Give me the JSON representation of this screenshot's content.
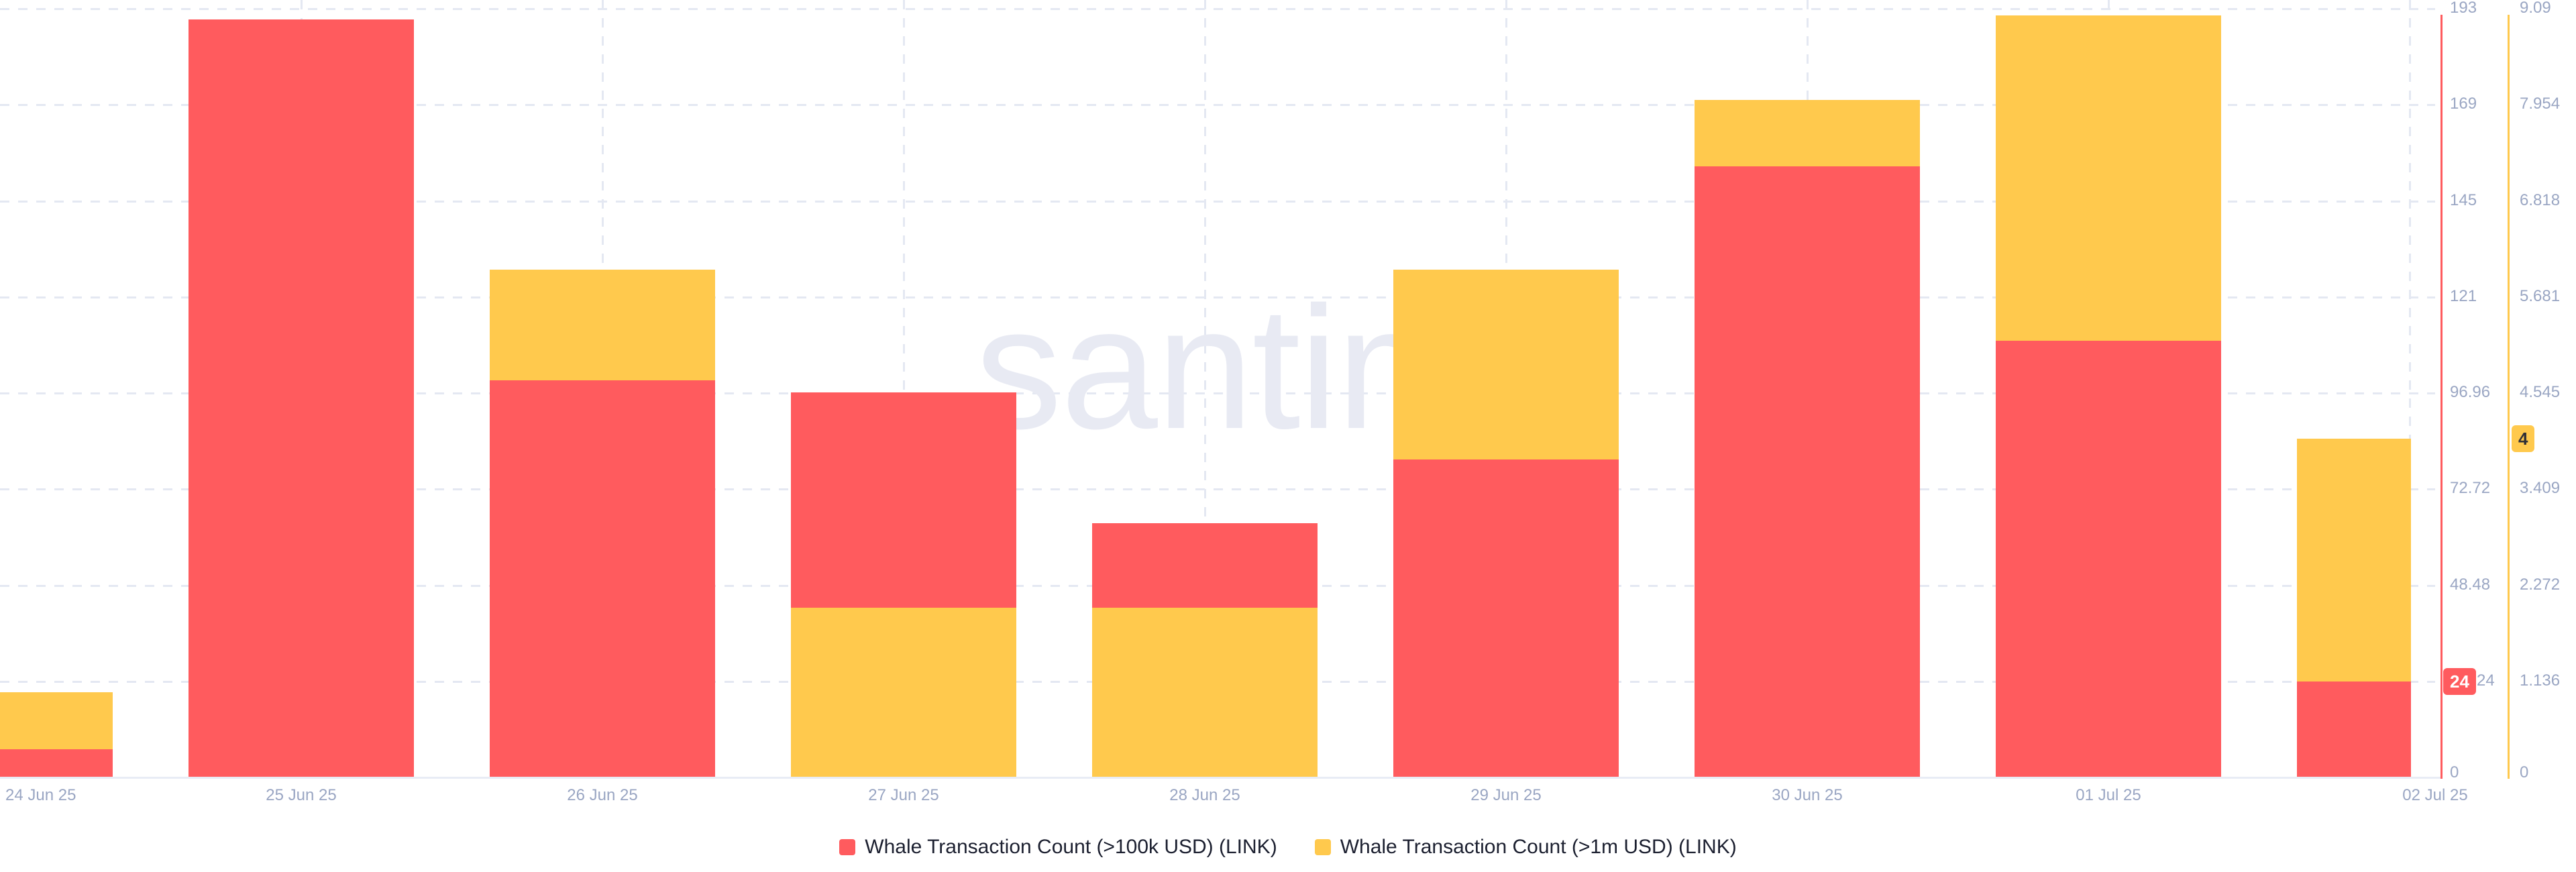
{
  "watermark": ".santiment",
  "colors": {
    "red": "#ff5b5e",
    "yellow": "#ffc94d",
    "grid": "#e4e8f2",
    "baseline": "#e8ecf5",
    "axis_text": "#9aa6c3",
    "legend_text": "#1c2030",
    "watermark": "#e8eaf3",
    "badge_red_text": "#ffffff",
    "badge_yellow_text": "#2f2f36"
  },
  "chart_data": {
    "type": "bar",
    "subtype": "overlaid-dual-axis-columns",
    "grid": true,
    "legend_position": "bottom",
    "categories": [
      "24 Jun 25",
      "25 Jun 25",
      "26 Jun 25",
      "27 Jun 25",
      "28 Jun 25",
      "29 Jun 25",
      "30 Jun 25",
      "01 Jul 25",
      "02 Jul 25"
    ],
    "series": [
      {
        "name": "Whale Transaction Count (>100k USD) (LINK)",
        "color": "#ff5b5e",
        "axis": "right-red",
        "values": [
          7,
          191,
          100,
          97,
          64,
          80,
          154,
          110,
          24
        ],
        "axis_max": 193.92
      },
      {
        "name": "Whale Transaction Count (>1m USD) (LINK)",
        "color": "#ffc94d",
        "axis": "right-yellow",
        "values": [
          1,
          0,
          6,
          2,
          2,
          6,
          8,
          9,
          4
        ],
        "axis_max": 9.09
      }
    ],
    "red_axis": {
      "tick_labels": [
        "0",
        "24",
        "48.48",
        "72.72",
        "96.96",
        "121",
        "145",
        "169",
        "193"
      ],
      "range": [
        0,
        193.92
      ]
    },
    "yellow_axis": {
      "tick_labels": [
        "0",
        "1.136",
        "2.272",
        "3.409",
        "4.545",
        "5.681",
        "6.818",
        "7.954",
        "9.09"
      ],
      "range": [
        0,
        9.09
      ]
    },
    "current_value_badges": {
      "red": {
        "label": "24",
        "value": 24
      },
      "yellow": {
        "label": "4",
        "value": 4
      }
    }
  }
}
